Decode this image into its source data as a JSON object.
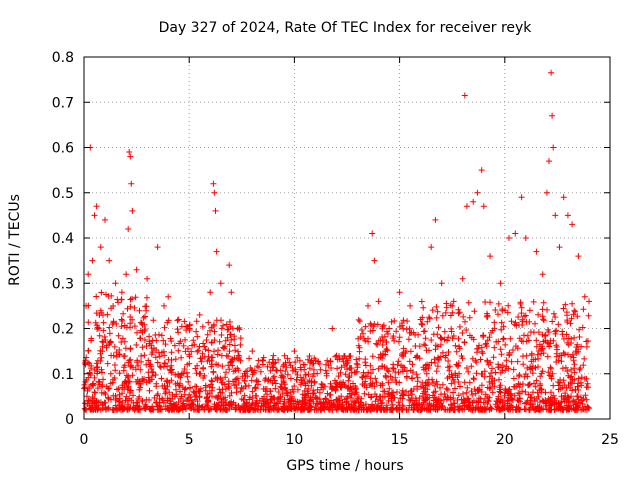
{
  "chart_data": {
    "type": "scatter",
    "title": "Day 327 of 2024, Rate Of TEC Index for receiver reyk",
    "xlabel": "GPS time / hours",
    "ylabel": "ROTI / TECUs",
    "xlim": [
      0,
      25
    ],
    "ylim": [
      0,
      0.8
    ],
    "xticks": [
      0,
      5,
      10,
      15,
      20,
      25
    ],
    "yticks": [
      0,
      0.1,
      0.2,
      0.3,
      0.4,
      0.5,
      0.6,
      0.7,
      0.8
    ],
    "xtick_labels": [
      "0",
      "5",
      "10",
      "15",
      "20",
      "25"
    ],
    "ytick_labels": [
      "0",
      "0.1",
      "0.2",
      "0.3",
      "0.4",
      "0.5",
      "0.6",
      "0.7",
      "0.8"
    ],
    "grid": true,
    "marker": "+",
    "color": "#ff0000",
    "series": [
      {
        "name": "ROTI",
        "note": "dense scatter of ~one sample per few minutes per satellite; representative points listed",
        "points": [
          [
            0.1,
            0.25
          ],
          [
            0.2,
            0.32
          ],
          [
            0.3,
            0.6
          ],
          [
            0.4,
            0.35
          ],
          [
            0.5,
            0.45
          ],
          [
            0.6,
            0.47
          ],
          [
            0.8,
            0.38
          ],
          [
            1.0,
            0.44
          ],
          [
            1.2,
            0.35
          ],
          [
            1.5,
            0.3
          ],
          [
            1.8,
            0.28
          ],
          [
            2.0,
            0.32
          ],
          [
            2.1,
            0.42
          ],
          [
            2.15,
            0.59
          ],
          [
            2.2,
            0.58
          ],
          [
            2.25,
            0.52
          ],
          [
            2.3,
            0.46
          ],
          [
            2.5,
            0.33
          ],
          [
            3.0,
            0.31
          ],
          [
            3.5,
            0.38
          ],
          [
            3.8,
            0.25
          ],
          [
            4.0,
            0.27
          ],
          [
            4.5,
            0.22
          ],
          [
            5.0,
            0.2
          ],
          [
            5.5,
            0.23
          ],
          [
            6.0,
            0.28
          ],
          [
            6.15,
            0.52
          ],
          [
            6.2,
            0.5
          ],
          [
            6.25,
            0.46
          ],
          [
            6.3,
            0.37
          ],
          [
            6.5,
            0.3
          ],
          [
            6.9,
            0.34
          ],
          [
            7.0,
            0.28
          ],
          [
            7.3,
            0.2
          ],
          [
            8.0,
            0.15
          ],
          [
            8.5,
            0.13
          ],
          [
            9.0,
            0.14
          ],
          [
            9.5,
            0.12
          ],
          [
            10.0,
            0.15
          ],
          [
            10.5,
            0.12
          ],
          [
            11.0,
            0.13
          ],
          [
            11.5,
            0.12
          ],
          [
            11.8,
            0.2
          ],
          [
            12.0,
            0.14
          ],
          [
            12.5,
            0.11
          ],
          [
            13.0,
            0.12
          ],
          [
            13.5,
            0.25
          ],
          [
            13.7,
            0.41
          ],
          [
            13.8,
            0.35
          ],
          [
            14.0,
            0.26
          ],
          [
            14.5,
            0.2
          ],
          [
            15.0,
            0.28
          ],
          [
            15.5,
            0.25
          ],
          [
            16.0,
            0.22
          ],
          [
            16.5,
            0.38
          ],
          [
            16.7,
            0.44
          ],
          [
            17.0,
            0.3
          ],
          [
            17.5,
            0.25
          ],
          [
            18.0,
            0.31
          ],
          [
            18.1,
            0.715
          ],
          [
            18.2,
            0.47
          ],
          [
            18.5,
            0.48
          ],
          [
            18.7,
            0.5
          ],
          [
            18.9,
            0.55
          ],
          [
            19.0,
            0.47
          ],
          [
            19.3,
            0.36
          ],
          [
            19.8,
            0.3
          ],
          [
            20.2,
            0.4
          ],
          [
            20.5,
            0.41
          ],
          [
            20.8,
            0.49
          ],
          [
            21.0,
            0.4
          ],
          [
            21.5,
            0.37
          ],
          [
            21.8,
            0.32
          ],
          [
            22.0,
            0.5
          ],
          [
            22.1,
            0.57
          ],
          [
            22.2,
            0.765
          ],
          [
            22.25,
            0.67
          ],
          [
            22.3,
            0.6
          ],
          [
            22.4,
            0.45
          ],
          [
            22.6,
            0.38
          ],
          [
            22.8,
            0.49
          ],
          [
            23.0,
            0.45
          ],
          [
            23.2,
            0.43
          ],
          [
            23.5,
            0.36
          ],
          [
            23.8,
            0.27
          ],
          [
            24.0,
            0.26
          ]
        ]
      }
    ]
  }
}
